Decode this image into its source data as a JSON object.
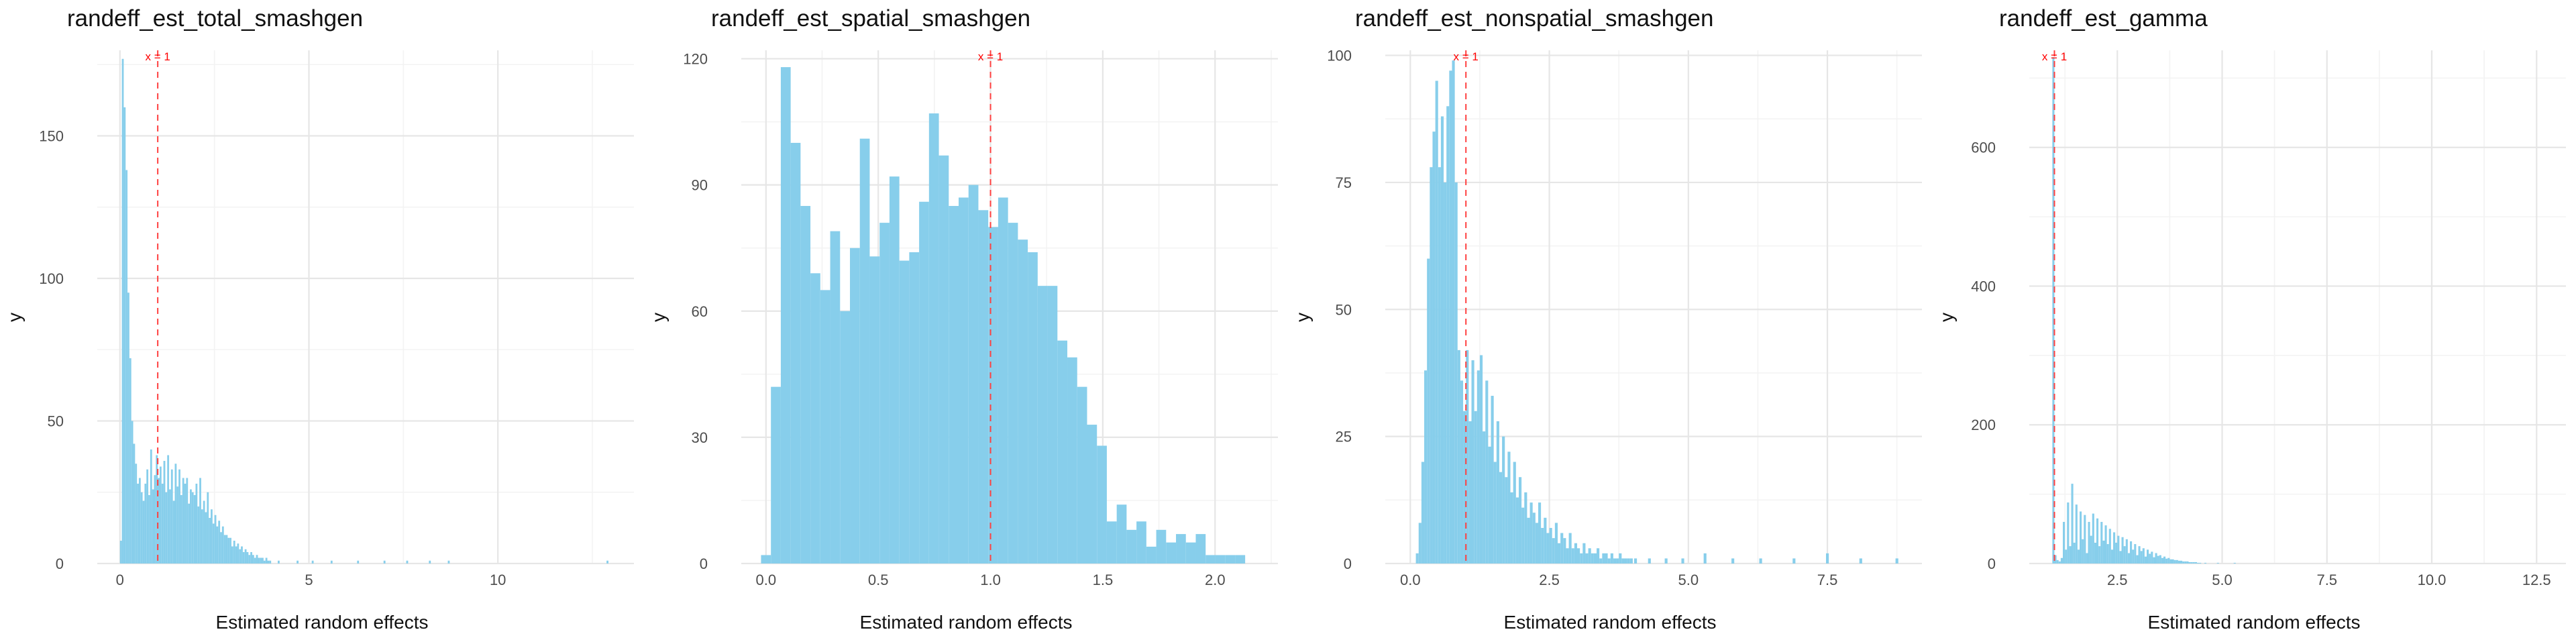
{
  "colors": {
    "bar": "#87CEEB",
    "vline": "#FF4040",
    "annotation": "#FF0000",
    "grid_major": "#E6E6E6",
    "grid_minor": "#F3F3F3"
  },
  "chart_data": [
    {
      "type": "bar",
      "title": "randeff_est_total_smashgen",
      "xlabel": "Estimated random effects",
      "ylabel": "y",
      "xlim": [
        -0.6,
        13.6
      ],
      "ylim": [
        0,
        180
      ],
      "xticks": [
        0,
        5,
        10
      ],
      "xtick_labels": [
        "0",
        "5",
        "10"
      ],
      "yticks": [
        0,
        50,
        100,
        150
      ],
      "ytick_labels": [
        "0",
        "50",
        "100",
        "150"
      ],
      "vline": 1,
      "annotation": "x = 1",
      "grid": true,
      "bin_width": 0.05,
      "bins_x": [
        0.025,
        0.075,
        0.125,
        0.175,
        0.225,
        0.275,
        0.325,
        0.375,
        0.425,
        0.475,
        0.525,
        0.575,
        0.625,
        0.675,
        0.725,
        0.775,
        0.825,
        0.875,
        0.925,
        0.975,
        1.025,
        1.075,
        1.125,
        1.175,
        1.225,
        1.275,
        1.325,
        1.375,
        1.425,
        1.475,
        1.525,
        1.575,
        1.625,
        1.675,
        1.725,
        1.775,
        1.825,
        1.875,
        1.925,
        1.975,
        2.025,
        2.075,
        2.125,
        2.175,
        2.225,
        2.275,
        2.325,
        2.375,
        2.425,
        2.475,
        2.525,
        2.575,
        2.625,
        2.675,
        2.725,
        2.775,
        2.825,
        2.875,
        2.925,
        2.975,
        3.025,
        3.075,
        3.125,
        3.175,
        3.225,
        3.275,
        3.325,
        3.375,
        3.425,
        3.475,
        3.525,
        3.575,
        3.625,
        3.675,
        3.725,
        3.775,
        3.825,
        3.875,
        3.925,
        3.975,
        4.2,
        4.7,
        5.1,
        5.6,
        6.3,
        7.0,
        7.6,
        8.2,
        8.7,
        12.9
      ],
      "values": [
        8,
        177,
        160,
        138,
        95,
        72,
        50,
        42,
        35,
        28,
        30,
        25,
        22,
        28,
        33,
        24,
        40,
        26,
        31,
        38,
        30,
        34,
        28,
        36,
        25,
        38,
        26,
        33,
        22,
        35,
        27,
        33,
        24,
        30,
        28,
        30,
        21,
        26,
        25,
        24,
        28,
        20,
        30,
        19,
        22,
        18,
        25,
        16,
        19,
        14,
        17,
        13,
        15,
        11,
        13,
        10,
        10,
        9,
        9,
        6,
        8,
        6,
        7,
        5,
        6,
        4,
        5,
        4,
        3,
        4,
        3,
        2,
        3,
        2,
        2,
        2,
        1,
        2,
        1,
        1,
        1,
        1,
        1,
        1,
        1,
        1,
        1,
        1,
        1,
        1
      ]
    },
    {
      "type": "bar",
      "title": "randeff_est_spatial_smashgen",
      "xlabel": "Estimated random effects",
      "ylabel": "y",
      "xlim": [
        -0.11,
        2.28
      ],
      "ylim": [
        0,
        122
      ],
      "xticks": [
        0.0,
        0.5,
        1.0,
        1.5,
        2.0
      ],
      "xtick_labels": [
        "0.0",
        "0.5",
        "1.0",
        "1.5",
        "2.0"
      ],
      "yticks": [
        0,
        30,
        60,
        90,
        120
      ],
      "ytick_labels": [
        "0",
        "30",
        "60",
        "90",
        "120"
      ],
      "vline": 1,
      "annotation": "x = 1",
      "grid": true,
      "bin_width": 0.044,
      "bins_x": [
        0.0,
        0.044,
        0.088,
        0.132,
        0.176,
        0.22,
        0.264,
        0.308,
        0.352,
        0.396,
        0.44,
        0.484,
        0.528,
        0.572,
        0.616,
        0.66,
        0.704,
        0.748,
        0.792,
        0.836,
        0.88,
        0.924,
        0.968,
        1.012,
        1.056,
        1.1,
        1.144,
        1.188,
        1.232,
        1.276,
        1.32,
        1.364,
        1.408,
        1.452,
        1.496,
        1.54,
        1.584,
        1.628,
        1.672,
        1.716,
        1.76,
        1.804,
        1.848,
        1.892,
        1.936,
        1.98,
        2.024,
        2.068,
        2.112
      ],
      "values": [
        2,
        42,
        118,
        100,
        85,
        69,
        65,
        79,
        60,
        75,
        101,
        73,
        81,
        92,
        72,
        74,
        86,
        107,
        97,
        85,
        87,
        90,
        84,
        80,
        87,
        81,
        77,
        74,
        66,
        66,
        53,
        49,
        42,
        33,
        28,
        10,
        14,
        8,
        10,
        4,
        8,
        5,
        7,
        5,
        7,
        2,
        2,
        2,
        2
      ]
    },
    {
      "type": "bar",
      "title": "randeff_est_nonspatial_smashgen",
      "xlabel": "Estimated random effects",
      "ylabel": "y",
      "xlim": [
        -0.45,
        9.2
      ],
      "ylim": [
        0,
        101
      ],
      "xticks": [
        0.0,
        2.5,
        5.0,
        7.5
      ],
      "xtick_labels": [
        "0.0",
        "2.5",
        "5.0",
        "7.5"
      ],
      "yticks": [
        0,
        25,
        50,
        75,
        100
      ],
      "ytick_labels": [
        "0",
        "25",
        "50",
        "75",
        "100"
      ],
      "vline": 1,
      "annotation": "x = 1",
      "grid": true,
      "bin_width": 0.05,
      "bins_x": [
        0.125,
        0.175,
        0.225,
        0.275,
        0.325,
        0.375,
        0.425,
        0.475,
        0.525,
        0.575,
        0.625,
        0.675,
        0.725,
        0.775,
        0.825,
        0.875,
        0.925,
        0.975,
        1.025,
        1.075,
        1.125,
        1.175,
        1.225,
        1.275,
        1.325,
        1.375,
        1.425,
        1.475,
        1.525,
        1.575,
        1.625,
        1.675,
        1.725,
        1.775,
        1.825,
        1.875,
        1.925,
        1.975,
        2.025,
        2.075,
        2.125,
        2.175,
        2.225,
        2.275,
        2.325,
        2.375,
        2.425,
        2.475,
        2.525,
        2.575,
        2.625,
        2.675,
        2.725,
        2.775,
        2.825,
        2.875,
        2.925,
        2.975,
        3.025,
        3.075,
        3.125,
        3.175,
        3.225,
        3.275,
        3.325,
        3.375,
        3.425,
        3.475,
        3.525,
        3.575,
        3.625,
        3.675,
        3.725,
        3.775,
        3.825,
        3.875,
        3.925,
        3.975,
        4.05,
        4.3,
        4.6,
        4.9,
        5.3,
        5.8,
        6.3,
        6.9,
        7.5,
        8.1,
        8.75
      ],
      "values": [
        2,
        8,
        20,
        38,
        60,
        78,
        85,
        95,
        78,
        88,
        75,
        90,
        97,
        99,
        75,
        42,
        36,
        30,
        42,
        28,
        40,
        30,
        38,
        41,
        26,
        36,
        23,
        33,
        20,
        28,
        18,
        25,
        17,
        22,
        14,
        20,
        13,
        17,
        11,
        14,
        9,
        12,
        10,
        8,
        12,
        7,
        9,
        6,
        7,
        5,
        8,
        4,
        6,
        5,
        3,
        6,
        3,
        4,
        3,
        2,
        4,
        2,
        3,
        2,
        2,
        3,
        1,
        2,
        2,
        1,
        2,
        1,
        1,
        2,
        1,
        1,
        1,
        1,
        1,
        1,
        1,
        1,
        2,
        1,
        1,
        1,
        2,
        1,
        1
      ]
    },
    {
      "type": "bar",
      "title": "randeff_est_gamma",
      "xlabel": "Estimated random effects",
      "ylabel": "y",
      "xlim": [
        0.4,
        13.2
      ],
      "ylim": [
        0,
        740
      ],
      "xticks": [
        2.5,
        5.0,
        7.5,
        10.0,
        12.5
      ],
      "xtick_labels": [
        "2.5",
        "5.0",
        "7.5",
        "10.0",
        "12.5"
      ],
      "yticks": [
        0,
        200,
        400,
        600
      ],
      "ytick_labels": [
        "0",
        "200",
        "400",
        "600"
      ],
      "vline": 1,
      "annotation": "x = 1",
      "grid": true,
      "bin_width": 0.05,
      "bins_x": [
        0.975,
        1.025,
        1.075,
        1.125,
        1.175,
        1.225,
        1.275,
        1.325,
        1.375,
        1.425,
        1.475,
        1.525,
        1.575,
        1.625,
        1.675,
        1.725,
        1.775,
        1.825,
        1.875,
        1.925,
        1.975,
        2.025,
        2.075,
        2.125,
        2.175,
        2.225,
        2.275,
        2.325,
        2.375,
        2.425,
        2.475,
        2.525,
        2.575,
        2.625,
        2.675,
        2.725,
        2.775,
        2.825,
        2.875,
        2.925,
        2.975,
        3.025,
        3.075,
        3.125,
        3.175,
        3.225,
        3.275,
        3.325,
        3.375,
        3.425,
        3.475,
        3.525,
        3.575,
        3.625,
        3.675,
        3.725,
        3.775,
        3.825,
        3.875,
        3.925,
        3.975,
        4.025,
        4.075,
        4.125,
        4.175,
        4.225,
        4.275,
        4.325,
        4.375,
        4.425,
        4.475,
        4.6,
        4.9,
        5.3
      ],
      "values": [
        730,
        12,
        5,
        3,
        8,
        60,
        20,
        88,
        25,
        115,
        30,
        85,
        20,
        75,
        35,
        70,
        15,
        60,
        40,
        72,
        30,
        65,
        25,
        60,
        33,
        55,
        28,
        50,
        20,
        45,
        30,
        40,
        18,
        38,
        25,
        35,
        15,
        32,
        20,
        28,
        12,
        25,
        18,
        22,
        10,
        20,
        14,
        17,
        9,
        15,
        11,
        12,
        8,
        10,
        7,
        8,
        6,
        6,
        5,
        5,
        4,
        4,
        3,
        3,
        3,
        2,
        2,
        2,
        2,
        1,
        1,
        1,
        1,
        1
      ]
    }
  ]
}
